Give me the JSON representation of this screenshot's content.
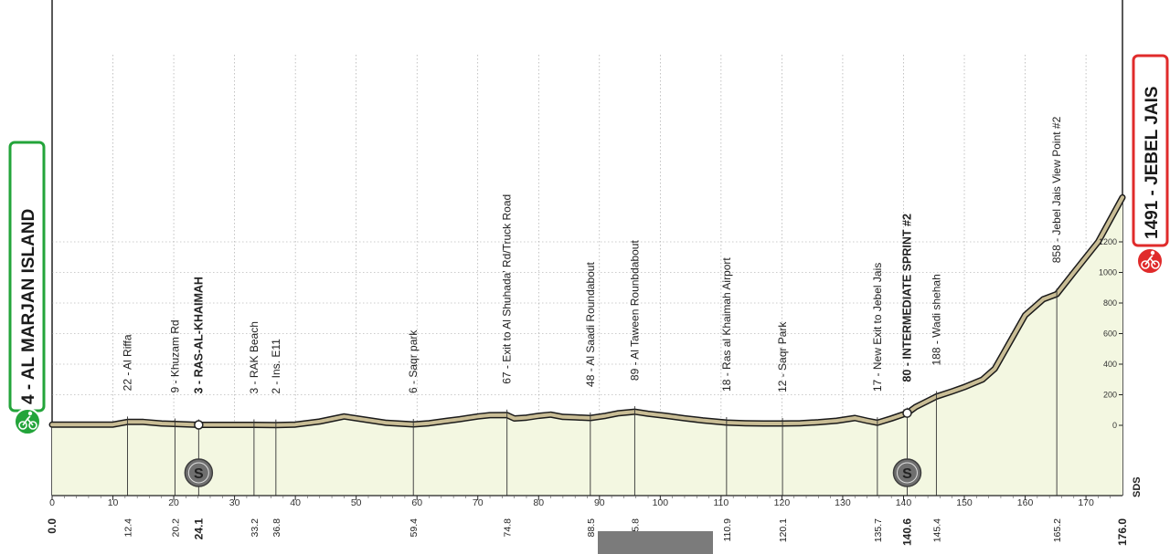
{
  "chart_data": {
    "type": "area",
    "title": "",
    "xlabel": "",
    "ylabel": "",
    "xlim": [
      0,
      176
    ],
    "ylim": [
      -300,
      1500
    ],
    "grid": true,
    "colors": {
      "road": "#c9bd95",
      "road_outline": "#1a1a1a",
      "fill": "#f3f7e1",
      "start_box": "#23a43a",
      "finish_box": "#e02b2b",
      "sprint_marker": "#6f6f6f"
    },
    "start": {
      "label": "4 - AL MARJAN ISLAND",
      "km": 0,
      "icon": "cyclist-icon"
    },
    "finish": {
      "label": "1491 - JEBEL JAIS",
      "km": 176,
      "icon": "cyclist-icon"
    },
    "profile": [
      [
        0,
        4
      ],
      [
        5,
        5
      ],
      [
        10,
        5
      ],
      [
        12.4,
        22
      ],
      [
        15,
        22
      ],
      [
        18,
        12
      ],
      [
        20.2,
        9
      ],
      [
        24.1,
        3
      ],
      [
        28,
        3
      ],
      [
        33.2,
        3
      ],
      [
        36.8,
        2
      ],
      [
        40,
        5
      ],
      [
        44,
        25
      ],
      [
        48,
        58
      ],
      [
        51,
        40
      ],
      [
        55,
        16
      ],
      [
        59.4,
        6
      ],
      [
        62,
        14
      ],
      [
        65,
        30
      ],
      [
        67,
        40
      ],
      [
        70,
        58
      ],
      [
        72,
        66
      ],
      [
        74.8,
        67
      ],
      [
        76,
        45
      ],
      [
        78,
        50
      ],
      [
        80,
        62
      ],
      [
        82,
        70
      ],
      [
        84,
        55
      ],
      [
        86,
        52
      ],
      [
        88.5,
        48
      ],
      [
        91,
        62
      ],
      [
        93,
        78
      ],
      [
        95.8,
        89
      ],
      [
        98,
        76
      ],
      [
        101,
        62
      ],
      [
        104,
        46
      ],
      [
        107,
        32
      ],
      [
        110.9,
        18
      ],
      [
        114,
        14
      ],
      [
        117,
        12
      ],
      [
        120.1,
        12
      ],
      [
        123,
        14
      ],
      [
        126,
        20
      ],
      [
        129,
        30
      ],
      [
        132,
        48
      ],
      [
        134,
        30
      ],
      [
        135.7,
        17
      ],
      [
        138,
        45
      ],
      [
        140.6,
        80
      ],
      [
        142,
        120
      ],
      [
        145.4,
        188
      ],
      [
        148,
        222
      ],
      [
        150,
        250
      ],
      [
        153,
        300
      ],
      [
        155,
        370
      ],
      [
        158,
        580
      ],
      [
        160,
        720
      ],
      [
        163,
        825
      ],
      [
        165.2,
        858
      ],
      [
        168,
        1000
      ],
      [
        172,
        1200
      ],
      [
        176,
        1491
      ]
    ],
    "x_ticks": [
      0,
      10,
      20,
      30,
      40,
      50,
      60,
      70,
      80,
      90,
      100,
      110,
      120,
      130,
      140,
      150,
      160,
      170
    ],
    "y_ticks": [
      0,
      200,
      400,
      600,
      800,
      1000,
      1200
    ],
    "landmarks": [
      {
        "km": 12.4,
        "km_label": "12.4",
        "label": "22 - Al Riffa",
        "bold": false
      },
      {
        "km": 20.2,
        "km_label": "20.2",
        "label": "9 - Khuzam Rd",
        "bold": false
      },
      {
        "km": 24.1,
        "km_label": "24.1",
        "label": "3 - RAS-AL-KHAIMAH",
        "bold": true
      },
      {
        "km": 33.2,
        "km_label": "33.2",
        "label": "3 - RAK Beach",
        "bold": false
      },
      {
        "km": 36.8,
        "km_label": "36.8",
        "label": "2 - Ins. E11",
        "bold": false
      },
      {
        "km": 59.4,
        "km_label": "59.4",
        "label": "6 - Saqr park",
        "bold": false
      },
      {
        "km": 74.8,
        "km_label": "74.8",
        "label": "67 - Exit to  Al Shuhada' Rd/Truck Road",
        "bold": false
      },
      {
        "km": 88.5,
        "km_label": "88.5",
        "label": "48 - Al Saadi Roundabout",
        "bold": false
      },
      {
        "km": 95.8,
        "km_label": "95.8",
        "label": "89 - Al Taween Rounbdabout",
        "bold": false
      },
      {
        "km": 110.9,
        "km_label": "110.9",
        "label": "18 - Ras al Khaimah Airport",
        "bold": false
      },
      {
        "km": 120.1,
        "km_label": "120.1",
        "label": "12 - Saqr Park",
        "bold": false
      },
      {
        "km": 135.7,
        "km_label": "135.7",
        "label": "17 - New Exit to Jebel Jais",
        "bold": false
      },
      {
        "km": 140.6,
        "km_label": "140.6",
        "label": "80 - INTERMEDIATE SPRINT #2",
        "bold": true
      },
      {
        "km": 145.4,
        "km_label": "145.4",
        "label": "188 - Wadi shehah",
        "bold": false
      },
      {
        "km": 165.2,
        "km_label": "165.2",
        "label": "858 - Jebel Jais View Point #2",
        "bold": false
      }
    ],
    "start_km_label": "0.0",
    "finish_km_label": "176.0",
    "sprints": [
      {
        "km": 24.1,
        "letter": "S"
      },
      {
        "km": 140.6,
        "letter": "S"
      }
    ],
    "watermark": "SDS"
  }
}
